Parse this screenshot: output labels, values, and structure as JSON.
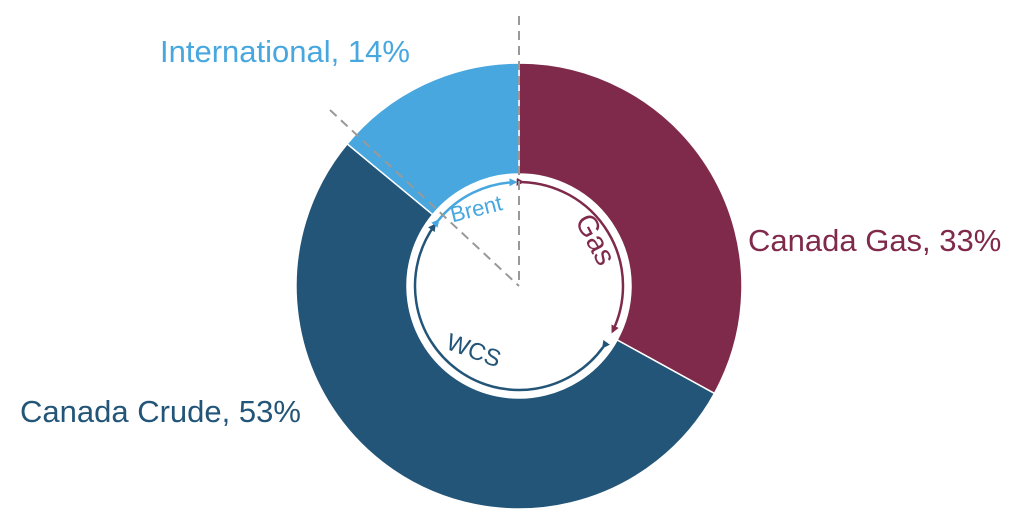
{
  "chart_data": {
    "type": "pie",
    "title": "",
    "slices": [
      {
        "name": "Canada Gas",
        "value": 33,
        "label": "Canada Gas, 33%",
        "color": "#7F2A4B"
      },
      {
        "name": "Canada Crude",
        "value": 53,
        "label": "Canada Crude, 53%",
        "color": "#235578"
      },
      {
        "name": "International",
        "value": 14,
        "label": "International, 14%",
        "color": "#47A7DE"
      }
    ],
    "inner_arcs": [
      {
        "label": "Gas",
        "color": "#7F2A4B"
      },
      {
        "label": "WCS",
        "color": "#235578"
      },
      {
        "label": "Brent",
        "color": "#47A7DE"
      }
    ],
    "legend": "none",
    "grid": false
  }
}
